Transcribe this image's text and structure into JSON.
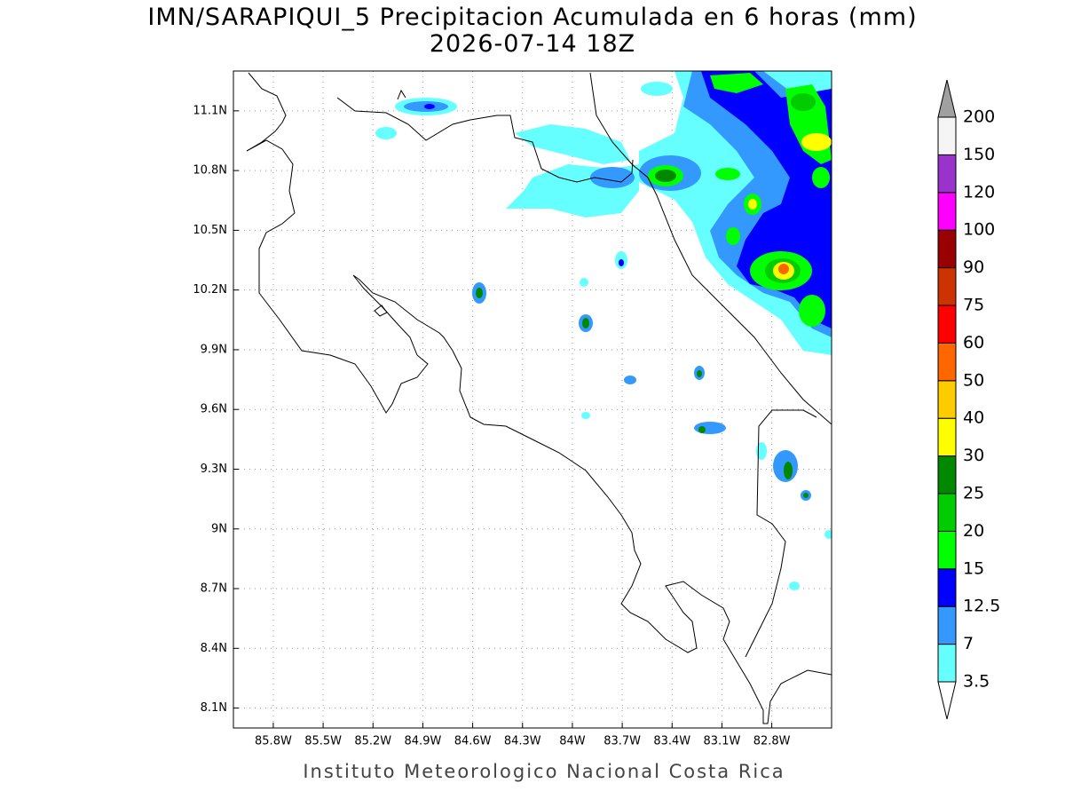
{
  "title": "IMN/SARAPIQUI_5 Precipitacion Acumulada en 6 horas (mm)",
  "subtitle": "2026-07-14 18Z",
  "map": {
    "xlim": [
      -86.04,
      -82.44
    ],
    "ylim": [
      8.0,
      11.3
    ],
    "grid": true,
    "xticks": [
      {
        "value": -85.8,
        "label": "85.8W"
      },
      {
        "value": -85.5,
        "label": "85.5W"
      },
      {
        "value": -85.2,
        "label": "85.2W"
      },
      {
        "value": -84.9,
        "label": "84.9W"
      },
      {
        "value": -84.6,
        "label": "84.6W"
      },
      {
        "value": -84.3,
        "label": "84.3W"
      },
      {
        "value": -84.0,
        "label": "84W"
      },
      {
        "value": -83.7,
        "label": "83.7W"
      },
      {
        "value": -83.4,
        "label": "83.4W"
      },
      {
        "value": -83.1,
        "label": "83.1W"
      },
      {
        "value": -82.8,
        "label": "82.8W"
      }
    ],
    "yticks": [
      {
        "value": 8.1,
        "label": "8.1N"
      },
      {
        "value": 8.4,
        "label": "8.4N"
      },
      {
        "value": 8.7,
        "label": "8.7N"
      },
      {
        "value": 9.0,
        "label": "9N"
      },
      {
        "value": 9.3,
        "label": "9.3N"
      },
      {
        "value": 9.6,
        "label": "9.6N"
      },
      {
        "value": 9.9,
        "label": "9.9N"
      },
      {
        "value": 10.2,
        "label": "10.2N"
      },
      {
        "value": 10.5,
        "label": "10.5N"
      },
      {
        "value": 10.8,
        "label": "10.8N"
      },
      {
        "value": 11.1,
        "label": "11.1N"
      }
    ]
  },
  "colorbar": {
    "levels": [
      3.5,
      7,
      12.5,
      15,
      20,
      25,
      30,
      40,
      50,
      60,
      75,
      90,
      100,
      120,
      150,
      200
    ],
    "colors": [
      "#66ffff",
      "#3399ff",
      "#0000ff",
      "#00ff00",
      "#00cc00",
      "#008800",
      "#ffff00",
      "#ffcc00",
      "#ff6600",
      "#ff0000",
      "#cc3300",
      "#990000",
      "#ff00ff",
      "#9933cc",
      "#f5f5f5"
    ],
    "under_color": "#ffffff",
    "over_color": "#a0a0a0"
  },
  "footer": "Instituto Meteorologico Nacional Costa Rica"
}
